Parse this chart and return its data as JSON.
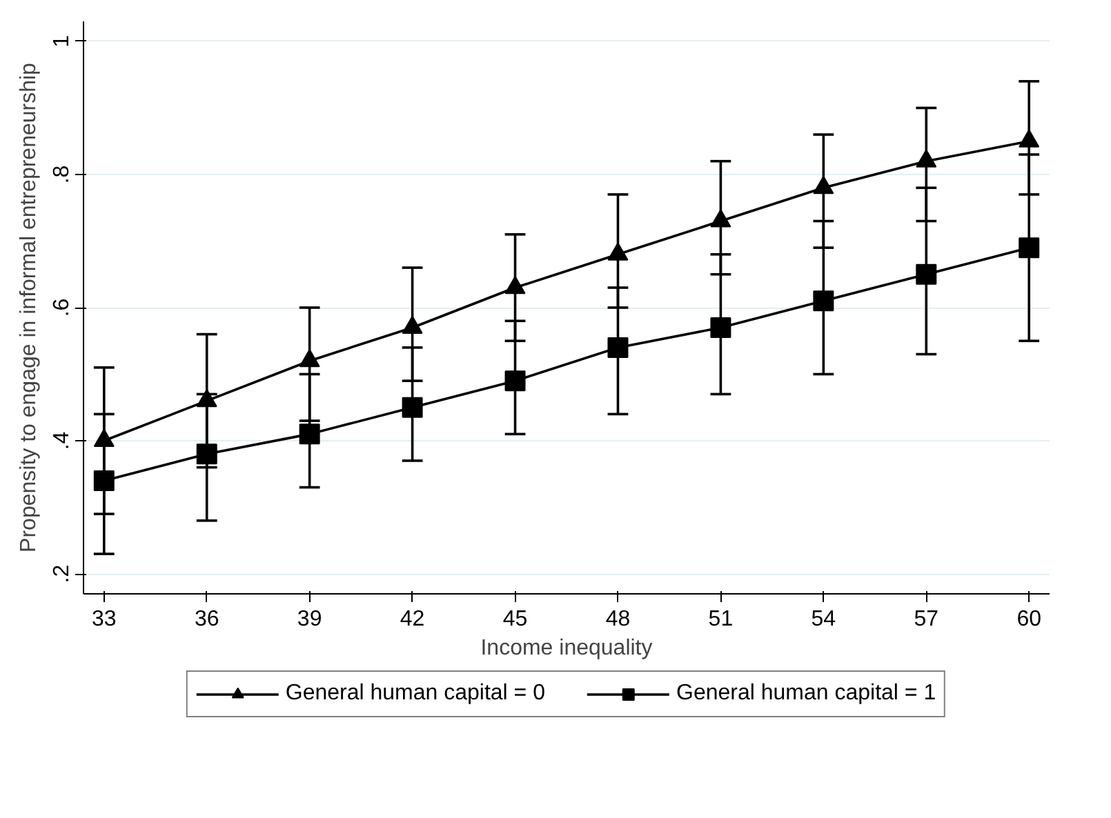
{
  "chart_data": {
    "type": "line",
    "xlabel": "Income inequality",
    "ylabel": "Propensity to engage in informal entrepreneurship",
    "x": [
      33,
      36,
      39,
      42,
      45,
      48,
      51,
      54,
      57,
      60
    ],
    "series": [
      {
        "name": "General human capital = 0",
        "color": "#000000",
        "marker": "triangle",
        "values": [
          0.4,
          0.46,
          0.52,
          0.57,
          0.63,
          0.68,
          0.73,
          0.78,
          0.82,
          0.85
        ],
        "errors": [
          [
            0.29,
            0.51
          ],
          [
            0.36,
            0.56
          ],
          [
            0.43,
            0.6
          ],
          [
            0.49,
            0.66
          ],
          [
            0.55,
            0.71
          ],
          [
            0.6,
            0.77
          ],
          [
            0.65,
            0.82
          ],
          [
            0.69,
            0.86
          ],
          [
            0.73,
            0.9
          ],
          [
            0.77,
            0.94
          ]
        ]
      },
      {
        "name": "General human capital = 1",
        "color": "#000000",
        "marker": "square",
        "values": [
          0.34,
          0.38,
          0.41,
          0.45,
          0.49,
          0.54,
          0.57,
          0.61,
          0.65,
          0.69
        ],
        "errors": [
          [
            0.23,
            0.44
          ],
          [
            0.28,
            0.47
          ],
          [
            0.33,
            0.5
          ],
          [
            0.37,
            0.54
          ],
          [
            0.41,
            0.58
          ],
          [
            0.44,
            0.63
          ],
          [
            0.47,
            0.68
          ],
          [
            0.5,
            0.73
          ],
          [
            0.53,
            0.78
          ],
          [
            0.55,
            0.83
          ]
        ]
      }
    ],
    "xlim": [
      32.4,
      60.6
    ],
    "xticks": [
      33,
      36,
      39,
      42,
      45,
      48,
      51,
      54,
      57,
      60
    ],
    "ylim": [
      0.17,
      1.03
    ],
    "yticks": [
      {
        "value": 0.2,
        "label": ".2"
      },
      {
        "value": 0.4,
        "label": ".4"
      },
      {
        "value": 0.6,
        "label": ".6"
      },
      {
        "value": 0.8,
        "label": ".8"
      },
      {
        "value": 1,
        "label": "1"
      }
    ],
    "grid": "y",
    "legend": "bottom",
    "line_style": "solid"
  }
}
